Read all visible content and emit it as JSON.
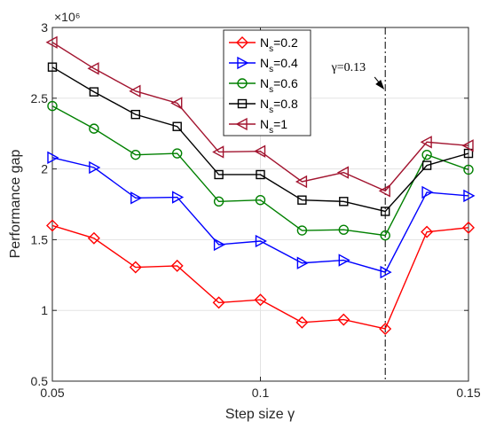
{
  "chart_data": {
    "type": "line",
    "xlabel": "Step size γ",
    "ylabel": "Performance gap",
    "y_multiplier_label": "×10⁶",
    "xlim": [
      0.05,
      0.15
    ],
    "ylim": [
      0.5,
      3.0
    ],
    "x_ticks": [
      0.05,
      0.1,
      0.15
    ],
    "x_tick_labels": [
      "0.05",
      "0.1",
      "0.15"
    ],
    "y_ticks": [
      0.5,
      1.0,
      1.5,
      2.0,
      2.5,
      3.0
    ],
    "y_tick_labels": [
      "0.5",
      "1",
      "1.5",
      "2",
      "2.5",
      "3"
    ],
    "grid": true,
    "legend_position": "top-center",
    "x": [
      0.05,
      0.06,
      0.07,
      0.08,
      0.09,
      0.1,
      0.11,
      0.12,
      0.13,
      0.14,
      0.15
    ],
    "series": [
      {
        "name": "Ns=0.2",
        "color": "#ff0000",
        "marker": "diamond",
        "values": [
          1.6,
          1.51,
          1.305,
          1.315,
          1.055,
          1.075,
          0.915,
          0.935,
          0.87,
          1.555,
          1.585
        ]
      },
      {
        "name": "Ns=0.4",
        "color": "#0000ff",
        "marker": "triangle-right",
        "values": [
          2.08,
          2.01,
          1.795,
          1.8,
          1.465,
          1.49,
          1.335,
          1.355,
          1.27,
          1.835,
          1.81
        ]
      },
      {
        "name": "Ns=0.6",
        "color": "#008000",
        "marker": "circle",
        "values": [
          2.445,
          2.285,
          2.1,
          2.11,
          1.77,
          1.78,
          1.565,
          1.57,
          1.53,
          2.1,
          1.995
        ]
      },
      {
        "name": "Ns=0.8",
        "color": "#000000",
        "marker": "square",
        "values": [
          2.72,
          2.545,
          2.385,
          2.3,
          1.96,
          1.96,
          1.78,
          1.77,
          1.7,
          2.025,
          2.11
        ]
      },
      {
        "name": "Ns=1",
        "color": "#a2142f",
        "marker": "triangle-left",
        "values": [
          2.895,
          2.71,
          2.55,
          2.465,
          2.12,
          2.125,
          1.91,
          1.975,
          1.845,
          2.19,
          2.165
        ]
      }
    ],
    "legend": [
      {
        "base": "N",
        "sub": "s",
        "rest": "=0.2"
      },
      {
        "base": "N",
        "sub": "s",
        "rest": "=0.4"
      },
      {
        "base": "N",
        "sub": "s",
        "rest": "=0.6"
      },
      {
        "base": "N",
        "sub": "s",
        "rest": "=0.8"
      },
      {
        "base": "N",
        "sub": "s",
        "rest": "=1"
      }
    ],
    "annotation": {
      "text": "γ=0.13",
      "x": 0.13
    }
  }
}
